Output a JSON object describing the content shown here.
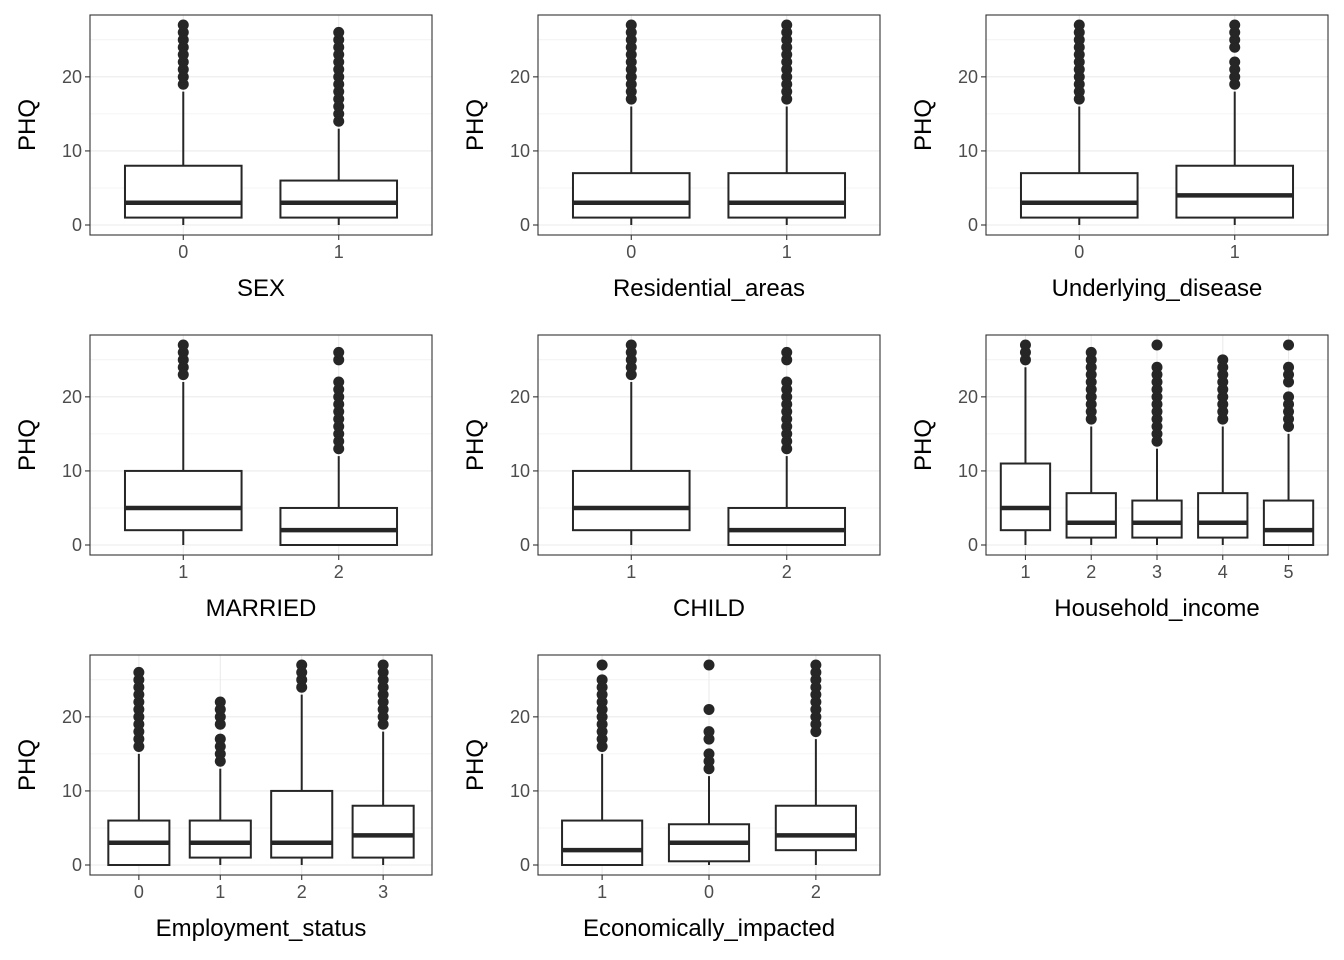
{
  "chart_data": [
    {
      "type": "boxplot",
      "xlabel": "SEX",
      "ylabel": "PHQ",
      "ylim": [
        0,
        27
      ],
      "yticks": [
        0,
        10,
        20
      ],
      "grid": true,
      "categories": [
        "0",
        "1"
      ],
      "boxes": [
        {
          "min": 0,
          "q1": 1,
          "median": 3,
          "q3": 8,
          "max": 18,
          "outliers": [
            19,
            20,
            21,
            22,
            23,
            24,
            25,
            26,
            27
          ]
        },
        {
          "min": 0,
          "q1": 1,
          "median": 3,
          "q3": 6,
          "max": 13,
          "outliers": [
            14,
            15,
            16,
            17,
            18,
            19,
            20,
            21,
            22,
            23,
            24,
            25,
            26
          ]
        }
      ]
    },
    {
      "type": "boxplot",
      "xlabel": "Residential_areas",
      "ylabel": "PHQ",
      "ylim": [
        0,
        27
      ],
      "yticks": [
        0,
        10,
        20
      ],
      "grid": true,
      "categories": [
        "0",
        "1"
      ],
      "boxes": [
        {
          "min": 0,
          "q1": 1,
          "median": 3,
          "q3": 7,
          "max": 16,
          "outliers": [
            17,
            18,
            19,
            20,
            21,
            22,
            23,
            24,
            25,
            26,
            27
          ]
        },
        {
          "min": 0,
          "q1": 1,
          "median": 3,
          "q3": 7,
          "max": 16,
          "outliers": [
            17,
            18,
            19,
            20,
            21,
            22,
            23,
            24,
            25,
            26,
            27
          ]
        }
      ]
    },
    {
      "type": "boxplot",
      "xlabel": "Underlying_disease",
      "ylabel": "PHQ",
      "ylim": [
        0,
        27
      ],
      "yticks": [
        0,
        10,
        20
      ],
      "grid": true,
      "categories": [
        "0",
        "1"
      ],
      "boxes": [
        {
          "min": 0,
          "q1": 1,
          "median": 3,
          "q3": 7,
          "max": 16,
          "outliers": [
            17,
            18,
            19,
            20,
            21,
            22,
            23,
            24,
            25,
            26,
            27
          ]
        },
        {
          "min": 0,
          "q1": 1,
          "median": 4,
          "q3": 8,
          "max": 18,
          "outliers": [
            19,
            20,
            21,
            22,
            24,
            25,
            26,
            27
          ]
        }
      ]
    },
    {
      "type": "boxplot",
      "xlabel": "MARRIED",
      "ylabel": "PHQ",
      "ylim": [
        0,
        27
      ],
      "yticks": [
        0,
        10,
        20
      ],
      "grid": true,
      "categories": [
        "1",
        "2"
      ],
      "boxes": [
        {
          "min": 0,
          "q1": 2,
          "median": 5,
          "q3": 10,
          "max": 22,
          "outliers": [
            23,
            24,
            25,
            26,
            27
          ]
        },
        {
          "min": 0,
          "q1": 0,
          "median": 2,
          "q3": 5,
          "max": 12,
          "outliers": [
            13,
            14,
            15,
            16,
            17,
            18,
            19,
            20,
            21,
            22,
            25,
            26
          ]
        }
      ]
    },
    {
      "type": "boxplot",
      "xlabel": "CHILD",
      "ylabel": "PHQ",
      "ylim": [
        0,
        27
      ],
      "yticks": [
        0,
        10,
        20
      ],
      "grid": true,
      "categories": [
        "1",
        "2"
      ],
      "boxes": [
        {
          "min": 0,
          "q1": 2,
          "median": 5,
          "q3": 10,
          "max": 22,
          "outliers": [
            23,
            24,
            25,
            26,
            27
          ]
        },
        {
          "min": 0,
          "q1": 0,
          "median": 2,
          "q3": 5,
          "max": 12,
          "outliers": [
            13,
            14,
            15,
            16,
            17,
            18,
            19,
            20,
            21,
            22,
            25,
            26
          ]
        }
      ]
    },
    {
      "type": "boxplot",
      "xlabel": "Household_income",
      "ylabel": "PHQ",
      "ylim": [
        0,
        27
      ],
      "yticks": [
        0,
        10,
        20
      ],
      "grid": true,
      "categories": [
        "1",
        "2",
        "3",
        "4",
        "5"
      ],
      "boxes": [
        {
          "min": 0,
          "q1": 2,
          "median": 5,
          "q3": 11,
          "max": 24,
          "outliers": [
            25,
            26,
            27
          ]
        },
        {
          "min": 0,
          "q1": 1,
          "median": 3,
          "q3": 7,
          "max": 16,
          "outliers": [
            17,
            18,
            19,
            20,
            21,
            22,
            23,
            24,
            25,
            26
          ]
        },
        {
          "min": 0,
          "q1": 1,
          "median": 3,
          "q3": 6,
          "max": 13,
          "outliers": [
            14,
            15,
            16,
            17,
            18,
            19,
            20,
            21,
            22,
            23,
            24,
            27
          ]
        },
        {
          "min": 0,
          "q1": 1,
          "median": 3,
          "q3": 7,
          "max": 16,
          "outliers": [
            17,
            18,
            19,
            20,
            21,
            22,
            23,
            24,
            25
          ]
        },
        {
          "min": 0,
          "q1": 0,
          "median": 2,
          "q3": 6,
          "max": 15,
          "outliers": [
            16,
            17,
            18,
            19,
            20,
            22,
            23,
            24,
            27
          ]
        }
      ]
    },
    {
      "type": "boxplot",
      "xlabel": "Employment_status",
      "ylabel": "PHQ",
      "ylim": [
        0,
        27
      ],
      "yticks": [
        0,
        10,
        20
      ],
      "grid": true,
      "categories": [
        "0",
        "1",
        "2",
        "3"
      ],
      "boxes": [
        {
          "min": 0,
          "q1": 0,
          "median": 3,
          "q3": 6,
          "max": 15,
          "outliers": [
            16,
            17,
            18,
            19,
            20,
            21,
            22,
            23,
            24,
            25,
            26
          ]
        },
        {
          "min": 0,
          "q1": 1,
          "median": 3,
          "q3": 6,
          "max": 13,
          "outliers": [
            14,
            15,
            16,
            17,
            19,
            20,
            21,
            22
          ]
        },
        {
          "min": 0,
          "q1": 1,
          "median": 3,
          "q3": 10,
          "max": 23,
          "outliers": [
            24,
            25,
            26,
            27
          ]
        },
        {
          "min": 0,
          "q1": 1,
          "median": 4,
          "q3": 8,
          "max": 18,
          "outliers": [
            19,
            20,
            21,
            22,
            23,
            24,
            25,
            26,
            27
          ]
        }
      ]
    },
    {
      "type": "boxplot",
      "xlabel": "Economically_impacted",
      "ylabel": "PHQ",
      "ylim": [
        0,
        27
      ],
      "yticks": [
        0,
        10,
        20
      ],
      "grid": true,
      "categories": [
        "1",
        "0",
        "2"
      ],
      "boxes": [
        {
          "min": 0,
          "q1": 0,
          "median": 2,
          "q3": 6,
          "max": 15,
          "outliers": [
            16,
            17,
            18,
            19,
            20,
            21,
            22,
            23,
            24,
            25,
            27
          ]
        },
        {
          "min": 0,
          "q1": 0.5,
          "median": 3,
          "q3": 5.5,
          "max": 12,
          "outliers": [
            13,
            14,
            15,
            17,
            18,
            21,
            27
          ]
        },
        {
          "min": 0,
          "q1": 2,
          "median": 4,
          "q3": 8,
          "max": 17,
          "outliers": [
            18,
            19,
            20,
            21,
            22,
            23,
            24,
            25,
            26,
            27
          ]
        }
      ]
    }
  ]
}
